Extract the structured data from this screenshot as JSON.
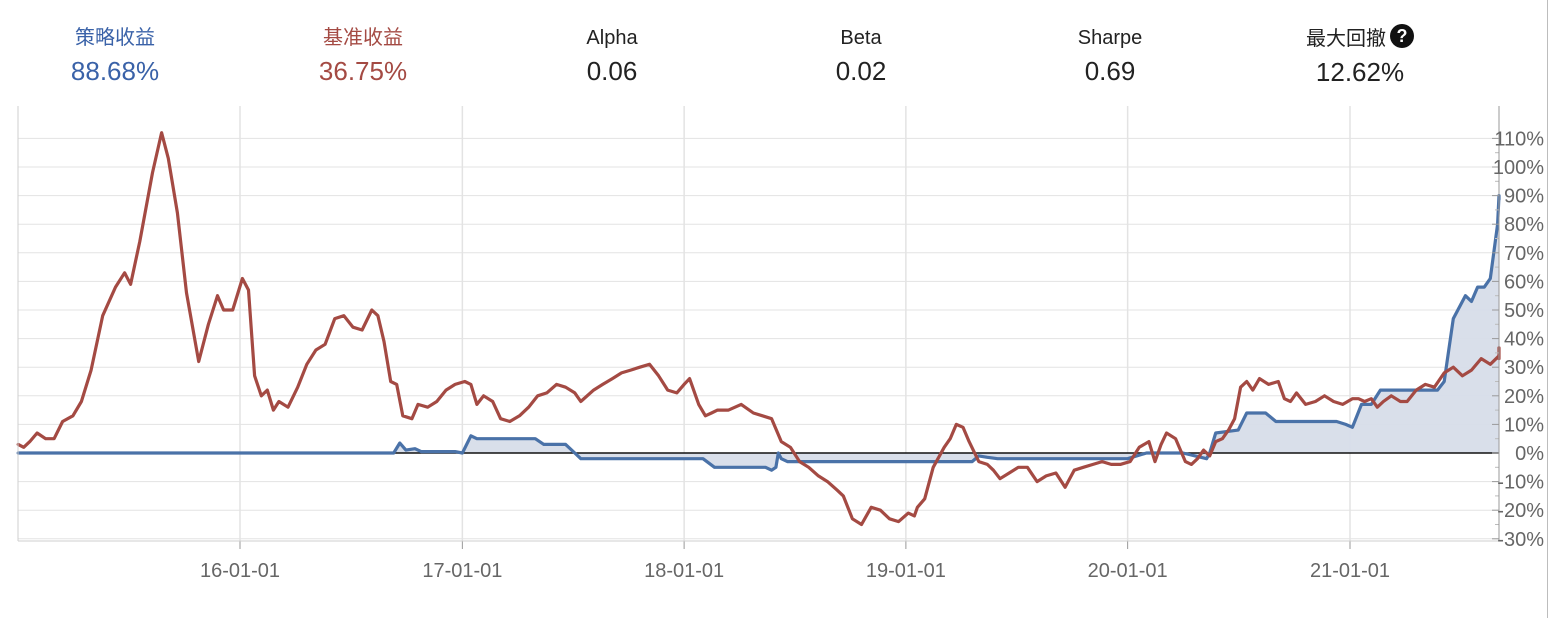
{
  "stats": {
    "strategy_return": {
      "label": "策略收益",
      "value": "88.68%",
      "color": "#3a62a8"
    },
    "benchmark_return": {
      "label": "基准收益",
      "value": "36.75%",
      "color": "#a44a43"
    },
    "alpha": {
      "label": "Alpha",
      "value": "0.06"
    },
    "beta": {
      "label": "Beta",
      "value": "0.02"
    },
    "sharpe": {
      "label": "Sharpe",
      "value": "0.69"
    },
    "max_drawdown": {
      "label": "最大回撤",
      "value": "12.62%",
      "icon": "question-circle-icon"
    }
  },
  "chart_data": {
    "type": "line",
    "x_range": [
      "2015-01-01",
      "2021-09-15"
    ],
    "ylim": [
      -33,
      114
    ],
    "y_ticks": [
      110,
      100,
      90,
      80,
      70,
      60,
      50,
      40,
      30,
      20,
      10,
      0,
      -10,
      -20,
      -30
    ],
    "y_tick_labels": [
      "110%",
      "100%",
      "90%",
      "80%",
      "70%",
      "60%",
      "50%",
      "40%",
      "30%",
      "20%",
      "10%",
      "0%",
      "-10%",
      "-20%",
      "-30%"
    ],
    "x_ticks": [
      "2016-01-01",
      "2017-01-01",
      "2018-01-01",
      "2019-01-01",
      "2020-01-01",
      "2021-01-01"
    ],
    "x_tick_labels": [
      "16-01-01",
      "17-01-01",
      "18-01-01",
      "19-01-01",
      "20-01-01",
      "21-01-01"
    ],
    "grid": true,
    "series": [
      {
        "key": "strategy",
        "color": "#4a72a8",
        "fill": true,
        "points": [
          [
            "2015-01-01",
            0
          ],
          [
            "2016-09-10",
            0
          ],
          [
            "2016-09-20",
            3.5
          ],
          [
            "2016-09-30",
            1
          ],
          [
            "2016-10-15",
            1.5
          ],
          [
            "2016-10-25",
            0.5
          ],
          [
            "2016-12-20",
            0.5
          ],
          [
            "2017-01-01",
            0
          ],
          [
            "2017-01-15",
            6
          ],
          [
            "2017-01-25",
            5
          ],
          [
            "2017-05-01",
            5
          ],
          [
            "2017-05-15",
            3
          ],
          [
            "2017-06-20",
            3
          ],
          [
            "2017-07-05",
            0
          ],
          [
            "2017-07-15",
            -2
          ],
          [
            "2018-02-01",
            -2
          ],
          [
            "2018-02-20",
            -5
          ],
          [
            "2018-05-15",
            -5
          ],
          [
            "2018-05-25",
            -6
          ],
          [
            "2018-06-01",
            -5
          ],
          [
            "2018-06-05",
            0
          ],
          [
            "2018-06-10",
            -2
          ],
          [
            "2018-06-20",
            -3
          ],
          [
            "2019-04-20",
            -3
          ],
          [
            "2019-05-01",
            -1
          ],
          [
            "2019-05-15",
            -1.5
          ],
          [
            "2019-06-01",
            -2
          ],
          [
            "2020-01-01",
            -2
          ],
          [
            "2020-02-01",
            0
          ],
          [
            "2020-04-01",
            0
          ],
          [
            "2020-05-10",
            -2
          ],
          [
            "2020-05-15",
            0
          ],
          [
            "2020-05-25",
            7
          ],
          [
            "2020-07-01",
            8
          ],
          [
            "2020-07-15",
            14
          ],
          [
            "2020-08-15",
            14
          ],
          [
            "2020-09-01",
            11
          ],
          [
            "2020-10-15",
            11
          ],
          [
            "2020-12-10",
            11
          ],
          [
            "2020-12-25",
            10
          ],
          [
            "2021-01-05",
            9
          ],
          [
            "2021-01-20",
            17
          ],
          [
            "2021-02-05",
            17
          ],
          [
            "2021-02-20",
            22
          ],
          [
            "2021-03-05",
            22
          ],
          [
            "2021-05-25",
            22
          ],
          [
            "2021-06-05",
            25
          ],
          [
            "2021-06-20",
            47
          ],
          [
            "2021-07-10",
            55
          ],
          [
            "2021-07-20",
            53
          ],
          [
            "2021-07-30",
            58
          ],
          [
            "2021-08-10",
            58
          ],
          [
            "2021-08-20",
            61
          ],
          [
            "2021-09-01",
            80
          ],
          [
            "2021-09-10",
            90
          ],
          [
            "2021-09-15",
            90
          ],
          [
            "2021-09-30",
            88.68
          ],
          [
            "2021-10-31",
            88.68
          ]
        ]
      },
      {
        "key": "benchmark",
        "color": "#a44a43",
        "fill": false,
        "points": [
          [
            "2015-01-01",
            3
          ],
          [
            "2015-01-10",
            2
          ],
          [
            "2015-01-20",
            4
          ],
          [
            "2015-02-01",
            7
          ],
          [
            "2015-02-15",
            5
          ],
          [
            "2015-03-01",
            5
          ],
          [
            "2015-03-15",
            11
          ],
          [
            "2015-04-01",
            13
          ],
          [
            "2015-04-15",
            18
          ],
          [
            "2015-05-01",
            29
          ],
          [
            "2015-05-20",
            48
          ],
          [
            "2015-06-10",
            58
          ],
          [
            "2015-06-25",
            63
          ],
          [
            "2015-07-05",
            59
          ],
          [
            "2015-07-20",
            74
          ],
          [
            "2015-08-10",
            98
          ],
          [
            "2015-08-25",
            112
          ],
          [
            "2015-09-05",
            103
          ],
          [
            "2015-09-20",
            84
          ],
          [
            "2015-10-05",
            56
          ],
          [
            "2015-10-25",
            32
          ],
          [
            "2015-11-10",
            45
          ],
          [
            "2015-11-25",
            55
          ],
          [
            "2015-12-05",
            50
          ],
          [
            "2015-12-20",
            50
          ],
          [
            "2016-01-05",
            61
          ],
          [
            "2016-01-15",
            57
          ],
          [
            "2016-01-25",
            27
          ],
          [
            "2016-02-05",
            20
          ],
          [
            "2016-02-15",
            22
          ],
          [
            "2016-02-25",
            15
          ],
          [
            "2016-03-05",
            18
          ],
          [
            "2016-03-20",
            16
          ],
          [
            "2016-04-05",
            23
          ],
          [
            "2016-04-20",
            31
          ],
          [
            "2016-05-05",
            36
          ],
          [
            "2016-05-20",
            38
          ],
          [
            "2016-06-05",
            47
          ],
          [
            "2016-06-20",
            48
          ],
          [
            "2016-07-05",
            44
          ],
          [
            "2016-07-20",
            43
          ],
          [
            "2016-08-05",
            50
          ],
          [
            "2016-08-15",
            48
          ],
          [
            "2016-08-25",
            39
          ],
          [
            "2016-09-05",
            25
          ],
          [
            "2016-09-15",
            24
          ],
          [
            "2016-09-25",
            13
          ],
          [
            "2016-10-10",
            12
          ],
          [
            "2016-10-20",
            17
          ],
          [
            "2016-11-05",
            16
          ],
          [
            "2016-11-20",
            18
          ],
          [
            "2016-12-05",
            22
          ],
          [
            "2016-12-20",
            24
          ],
          [
            "2017-01-05",
            25
          ],
          [
            "2017-01-15",
            24
          ],
          [
            "2017-01-25",
            17
          ],
          [
            "2017-02-05",
            20
          ],
          [
            "2017-02-20",
            18
          ],
          [
            "2017-03-05",
            12
          ],
          [
            "2017-03-20",
            11
          ],
          [
            "2017-04-05",
            13
          ],
          [
            "2017-04-20",
            16
          ],
          [
            "2017-05-05",
            20
          ],
          [
            "2017-05-20",
            21
          ],
          [
            "2017-06-05",
            24
          ],
          [
            "2017-06-20",
            23
          ],
          [
            "2017-07-05",
            21
          ],
          [
            "2017-07-15",
            18
          ],
          [
            "2017-08-05",
            22
          ],
          [
            "2017-08-20",
            24
          ],
          [
            "2017-09-05",
            26
          ],
          [
            "2017-09-20",
            28
          ],
          [
            "2017-10-05",
            29
          ],
          [
            "2017-10-20",
            30
          ],
          [
            "2017-11-05",
            31
          ],
          [
            "2017-11-20",
            27
          ],
          [
            "2017-12-05",
            22
          ],
          [
            "2017-12-20",
            21
          ],
          [
            "2018-01-01",
            24
          ],
          [
            "2018-01-10",
            26
          ],
          [
            "2018-01-25",
            17
          ],
          [
            "2018-02-05",
            13
          ],
          [
            "2018-02-15",
            14
          ],
          [
            "2018-02-25",
            15
          ],
          [
            "2018-03-15",
            15
          ],
          [
            "2018-04-05",
            17
          ],
          [
            "2018-04-25",
            14
          ],
          [
            "2018-05-10",
            13
          ],
          [
            "2018-05-25",
            12
          ],
          [
            "2018-06-10",
            4
          ],
          [
            "2018-06-25",
            2
          ],
          [
            "2018-07-10",
            -3
          ],
          [
            "2018-07-25",
            -5
          ],
          [
            "2018-08-10",
            -8
          ],
          [
            "2018-08-25",
            -10
          ],
          [
            "2018-09-10",
            -13
          ],
          [
            "2018-09-20",
            -15
          ],
          [
            "2018-10-05",
            -23
          ],
          [
            "2018-10-20",
            -25
          ],
          [
            "2018-11-05",
            -19
          ],
          [
            "2018-11-20",
            -20
          ],
          [
            "2018-12-05",
            -23
          ],
          [
            "2018-12-20",
            -24
          ],
          [
            "2019-01-05",
            -21
          ],
          [
            "2019-01-15",
            -22
          ],
          [
            "2019-01-20",
            -19
          ],
          [
            "2019-02-01",
            -16
          ],
          [
            "2019-02-15",
            -5
          ],
          [
            "2019-03-05",
            2
          ],
          [
            "2019-03-15",
            5
          ],
          [
            "2019-03-25",
            10
          ],
          [
            "2019-04-05",
            9
          ],
          [
            "2019-04-15",
            4
          ],
          [
            "2019-05-01",
            -3
          ],
          [
            "2019-05-15",
            -4
          ],
          [
            "2019-05-25",
            -6
          ],
          [
            "2019-06-05",
            -9
          ],
          [
            "2019-06-20",
            -7
          ],
          [
            "2019-07-05",
            -5
          ],
          [
            "2019-07-20",
            -5
          ],
          [
            "2019-08-05",
            -10
          ],
          [
            "2019-08-20",
            -8
          ],
          [
            "2019-09-05",
            -7
          ],
          [
            "2019-09-20",
            -12
          ],
          [
            "2019-10-05",
            -6
          ],
          [
            "2019-10-20",
            -5
          ],
          [
            "2019-11-05",
            -4
          ],
          [
            "2019-11-20",
            -3
          ],
          [
            "2019-12-05",
            -4
          ],
          [
            "2019-12-20",
            -4
          ],
          [
            "2020-01-05",
            -3
          ],
          [
            "2020-01-20",
            2
          ],
          [
            "2020-02-05",
            4
          ],
          [
            "2020-02-15",
            -3
          ],
          [
            "2020-02-25",
            3
          ],
          [
            "2020-03-05",
            7
          ],
          [
            "2020-03-20",
            5
          ],
          [
            "2020-04-05",
            -3
          ],
          [
            "2020-04-15",
            -4
          ],
          [
            "2020-04-25",
            -2
          ],
          [
            "2020-05-05",
            1
          ],
          [
            "2020-05-15",
            -1
          ],
          [
            "2020-05-25",
            4
          ],
          [
            "2020-06-05",
            5
          ],
          [
            "2020-06-15",
            8
          ],
          [
            "2020-06-25",
            12
          ],
          [
            "2020-07-05",
            23
          ],
          [
            "2020-07-15",
            25
          ],
          [
            "2020-07-25",
            22
          ],
          [
            "2020-08-05",
            26
          ],
          [
            "2020-08-20",
            24
          ],
          [
            "2020-09-05",
            25
          ],
          [
            "2020-09-15",
            19
          ],
          [
            "2020-09-25",
            18
          ],
          [
            "2020-10-05",
            21
          ],
          [
            "2020-10-20",
            17
          ],
          [
            "2020-11-05",
            18
          ],
          [
            "2020-11-20",
            20
          ],
          [
            "2020-12-05",
            18
          ],
          [
            "2020-12-20",
            17
          ],
          [
            "2021-01-05",
            19
          ],
          [
            "2021-01-15",
            19
          ],
          [
            "2021-01-25",
            18
          ],
          [
            "2021-02-05",
            19
          ],
          [
            "2021-02-15",
            16
          ],
          [
            "2021-02-25",
            18
          ],
          [
            "2021-03-10",
            20
          ],
          [
            "2021-03-25",
            18
          ],
          [
            "2021-04-05",
            18
          ],
          [
            "2021-04-20",
            22
          ],
          [
            "2021-05-05",
            24
          ],
          [
            "2021-05-20",
            23
          ],
          [
            "2021-06-05",
            28
          ],
          [
            "2021-06-20",
            30
          ],
          [
            "2021-07-05",
            27
          ],
          [
            "2021-07-20",
            29
          ],
          [
            "2021-08-05",
            33
          ],
          [
            "2021-08-20",
            31
          ],
          [
            "2021-09-05",
            34
          ],
          [
            "2021-09-15",
            33
          ],
          [
            "2021-09-30",
            36.75
          ]
        ]
      }
    ]
  }
}
